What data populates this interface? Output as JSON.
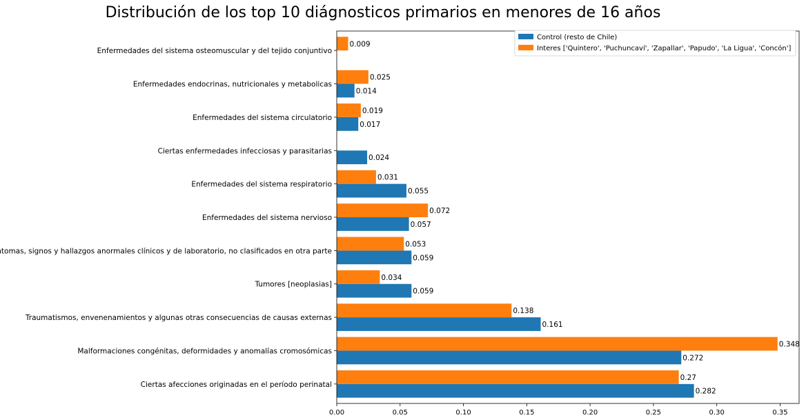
{
  "chart_data": {
    "type": "bar",
    "orientation": "horizontal",
    "title": "Distribución de los top 10 diágnosticos primarios en menores de 16 años",
    "xlabel": "",
    "ylabel": "",
    "xlim": [
      0,
      0.365
    ],
    "xticks": [
      "0.00",
      "0.05",
      "0.10",
      "0.15",
      "0.20",
      "0.25",
      "0.30",
      "0.35"
    ],
    "categories": [
      "Ciertas afecciones originadas en el período perinatal",
      "Malformaciones congénitas, deformidades y anomalías cromosómicas",
      "Traumatismos, envenenamientos y algunas otras consecuencias de causas externas",
      "Tumores [neoplasias]",
      "Síntomas, signos y hallazgos anormales clínicos y de laboratorio, no clasificados en otra parte",
      "Enfermedades del sistema nervioso",
      "Enfermedades del sistema respiratorio",
      "Ciertas enfermedades infecciosas y parasitarias",
      "Enfermedades del sistema circulatorio",
      "Enfermedades endocrinas, nutricionales y metabolicas",
      "Enfermedades del sistema osteomuscular y del tejido conjuntivo"
    ],
    "series": [
      {
        "name": "Control (resto de Chile)",
        "color": "#1f77b4",
        "values": [
          0.282,
          0.272,
          0.161,
          0.059,
          0.059,
          0.057,
          0.055,
          0.024,
          0.017,
          0.014,
          null
        ],
        "labels": [
          "0.282",
          "0.272",
          "0.161",
          "0.059",
          "0.059",
          "0.057",
          "0.055",
          "0.024",
          "0.017",
          "0.014",
          null
        ]
      },
      {
        "name": "Interes ['Quintero', 'Puchuncaví', 'Zapallar', 'Papudo', 'La Ligua', 'Concón']",
        "color": "#ff7f0e",
        "values": [
          0.27,
          0.348,
          0.138,
          0.034,
          0.053,
          0.072,
          0.031,
          null,
          0.019,
          0.025,
          0.009
        ],
        "labels": [
          "0.27",
          "0.348",
          "0.138",
          "0.034",
          "0.053",
          "0.072",
          "0.031",
          null,
          "0.019",
          "0.025",
          "0.009"
        ]
      }
    ],
    "legend_position": "top-right",
    "grid": false
  }
}
